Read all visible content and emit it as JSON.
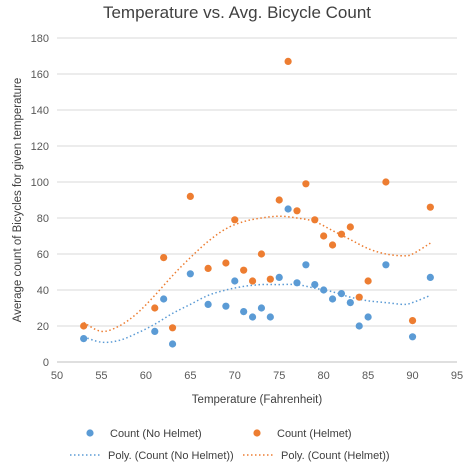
{
  "chart_data": {
    "type": "scatter",
    "title": "Temperature vs. Avg. Bicycle Count",
    "xlabel": "Temperature (Fahrenheit)",
    "ylabel": "Average count of Bicycles for given temperature",
    "xlim": [
      50,
      95
    ],
    "ylim": [
      0,
      180
    ],
    "x_ticks": [
      "50",
      "55",
      "60",
      "65",
      "70",
      "75",
      "80",
      "85",
      "90",
      "95"
    ],
    "y_ticks": [
      "0",
      "20",
      "40",
      "60",
      "80",
      "100",
      "120",
      "140",
      "160",
      "180"
    ],
    "grid": "horizontal",
    "legend_position": "bottom",
    "series": [
      {
        "name": "Count (No Helmet)",
        "color": "#5B9BD5",
        "points": [
          [
            53,
            13
          ],
          [
            61,
            17
          ],
          [
            62,
            35
          ],
          [
            63,
            10
          ],
          [
            65,
            49
          ],
          [
            67,
            32
          ],
          [
            69,
            31
          ],
          [
            70,
            45
          ],
          [
            71,
            28
          ],
          [
            72,
            25
          ],
          [
            73,
            30
          ],
          [
            74,
            25
          ],
          [
            75,
            47
          ],
          [
            76,
            85
          ],
          [
            77,
            44
          ],
          [
            78,
            54
          ],
          [
            79,
            43
          ],
          [
            80,
            40
          ],
          [
            81,
            35
          ],
          [
            82,
            38
          ],
          [
            83,
            33
          ],
          [
            84,
            20
          ],
          [
            85,
            25
          ],
          [
            87,
            54
          ],
          [
            90,
            14
          ],
          [
            92,
            47
          ]
        ]
      },
      {
        "name": "Count (Helmet)",
        "color": "#ED7D31",
        "points": [
          [
            53,
            20
          ],
          [
            61,
            30
          ],
          [
            62,
            58
          ],
          [
            63,
            19
          ],
          [
            65,
            92
          ],
          [
            67,
            52
          ],
          [
            69,
            55
          ],
          [
            70,
            79
          ],
          [
            71,
            51
          ],
          [
            72,
            45
          ],
          [
            73,
            60
          ],
          [
            74,
            46
          ],
          [
            75,
            90
          ],
          [
            76,
            167
          ],
          [
            77,
            84
          ],
          [
            78,
            99
          ],
          [
            79,
            79
          ],
          [
            80,
            70
          ],
          [
            81,
            65
          ],
          [
            82,
            71
          ],
          [
            83,
            75
          ],
          [
            84,
            36
          ],
          [
            85,
            45
          ],
          [
            87,
            100
          ],
          [
            90,
            23
          ],
          [
            92,
            86
          ]
        ]
      }
    ],
    "trendlines": [
      {
        "name": "Poly. (Count (No Helmet))",
        "color": "#5B9BD5",
        "points": [
          [
            53,
            14
          ],
          [
            55,
            11
          ],
          [
            57,
            12
          ],
          [
            59,
            16
          ],
          [
            61,
            21
          ],
          [
            63,
            27
          ],
          [
            65,
            32
          ],
          [
            67,
            37
          ],
          [
            69,
            40
          ],
          [
            71,
            42
          ],
          [
            73,
            43
          ],
          [
            75,
            43
          ],
          [
            77,
            43
          ],
          [
            79,
            41
          ],
          [
            81,
            39
          ],
          [
            83,
            36
          ],
          [
            85,
            34
          ],
          [
            87,
            33
          ],
          [
            89,
            32
          ],
          [
            90,
            33
          ],
          [
            92,
            37
          ]
        ]
      },
      {
        "name": "Poly. (Count (Helmet))",
        "color": "#ED7D31",
        "points": [
          [
            53,
            22
          ],
          [
            55,
            17
          ],
          [
            57,
            20
          ],
          [
            59,
            27
          ],
          [
            61,
            37
          ],
          [
            63,
            48
          ],
          [
            65,
            58
          ],
          [
            67,
            67
          ],
          [
            69,
            74
          ],
          [
            71,
            78
          ],
          [
            73,
            80
          ],
          [
            75,
            81
          ],
          [
            77,
            80
          ],
          [
            79,
            78
          ],
          [
            81,
            73
          ],
          [
            83,
            68
          ],
          [
            85,
            63
          ],
          [
            87,
            60
          ],
          [
            89,
            59
          ],
          [
            90,
            60
          ],
          [
            92,
            66
          ]
        ]
      }
    ]
  }
}
